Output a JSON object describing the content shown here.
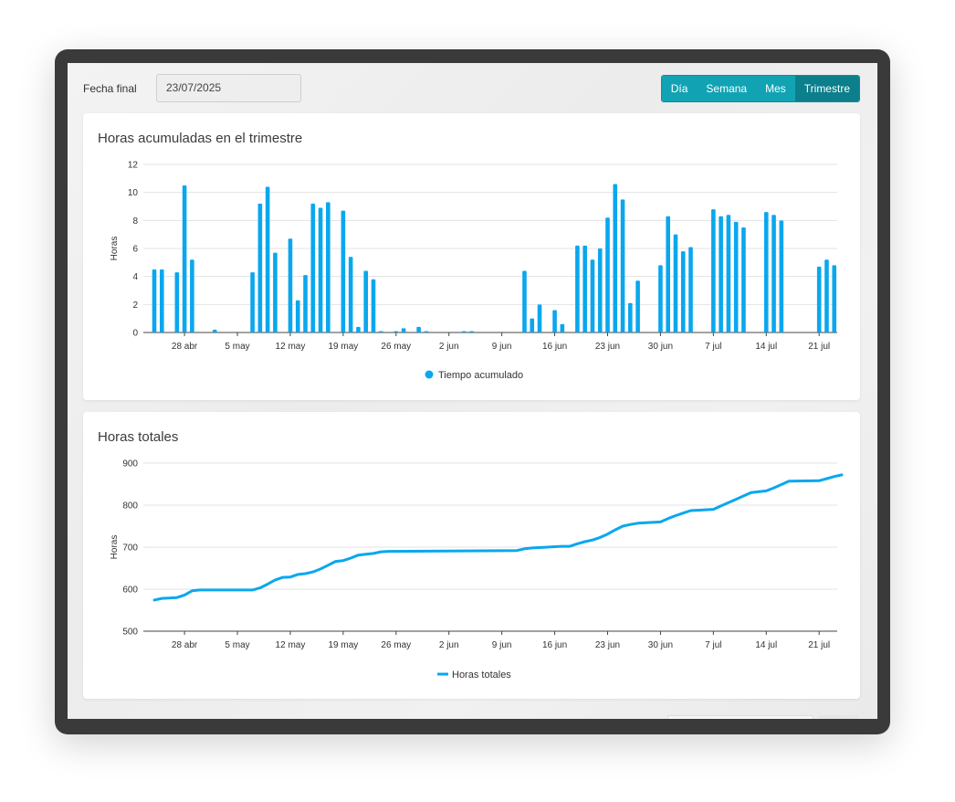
{
  "filter": {
    "label": "Fecha final",
    "value": "23/07/2025"
  },
  "period_tabs": [
    {
      "label": "Día",
      "active": false
    },
    {
      "label": "Semana",
      "active": false
    },
    {
      "label": "Mes",
      "active": false
    },
    {
      "label": "Trimestre",
      "active": true
    }
  ],
  "colors": {
    "series": "#0aa7ee",
    "tab": "#11a3b3",
    "tab_active": "#0b7f8b"
  },
  "chart_data": [
    {
      "type": "bar",
      "title": "Horas acumuladas en el trimestre",
      "ylabel": "Horas",
      "ylim": [
        0,
        12
      ],
      "yticks": [
        0,
        2,
        4,
        6,
        8,
        10,
        12
      ],
      "x_start": "2025-04-24",
      "x_tick_labels": [
        "28 abr",
        "5 may",
        "12 may",
        "19 may",
        "26 may",
        "2 jun",
        "9 jun",
        "16 jun",
        "23 jun",
        "30 jun",
        "7 jul",
        "14 jul",
        "21 jul"
      ],
      "series": [
        {
          "name": "Tiempo acumulado",
          "legend_marker": "circle"
        }
      ],
      "values": [
        4.5,
        4.5,
        0,
        4.3,
        10.5,
        5.2,
        0,
        0,
        0.2,
        0,
        0,
        0,
        0,
        4.3,
        9.2,
        10.4,
        5.7,
        0,
        6.7,
        2.3,
        4.1,
        9.2,
        8.9,
        9.3,
        0,
        8.7,
        5.4,
        0.4,
        4.4,
        3.8,
        0.05,
        0,
        0.1,
        0.3,
        0,
        0.4,
        0.1,
        0,
        0,
        0,
        0,
        0.05,
        0.05,
        0,
        0,
        0,
        0,
        0,
        0,
        4.4,
        1.0,
        2.0,
        0,
        1.6,
        0.6,
        0,
        6.2,
        6.2,
        5.2,
        6.0,
        8.2,
        10.6,
        9.5,
        2.1,
        3.7,
        0,
        0,
        4.8,
        8.3,
        7.0,
        5.8,
        6.1,
        0,
        0,
        8.8,
        8.3,
        8.4,
        7.9,
        7.5,
        0,
        0,
        8.6,
        8.4,
        8.0,
        0,
        0,
        0,
        0,
        4.7,
        5.2,
        4.8
      ]
    },
    {
      "type": "line",
      "title": "Horas totales",
      "ylabel": "Horas",
      "ylim": [
        500,
        900
      ],
      "yticks": [
        500,
        600,
        700,
        800,
        900
      ],
      "x_tick_labels": [
        "28 abr",
        "5 may",
        "12 may",
        "19 may",
        "26 may",
        "2 jun",
        "9 jun",
        "16 jun",
        "23 jun",
        "30 jun",
        "7 jul",
        "14 jul",
        "21 jul"
      ],
      "series": [
        {
          "name": "Horas totales",
          "points": [
            [
              "2025-04-24",
              574
            ],
            [
              "2025-04-25",
              578
            ],
            [
              "2025-04-27",
              580
            ],
            [
              "2025-04-28",
              586
            ],
            [
              "2025-04-29",
              596
            ],
            [
              "2025-04-30",
              598
            ],
            [
              "2025-05-07",
              598
            ],
            [
              "2025-05-08",
              603
            ],
            [
              "2025-05-09",
              612
            ],
            [
              "2025-05-10",
              622
            ],
            [
              "2025-05-11",
              628
            ],
            [
              "2025-05-12",
              629
            ],
            [
              "2025-05-13",
              635
            ],
            [
              "2025-05-14",
              637
            ],
            [
              "2025-05-15",
              641
            ],
            [
              "2025-05-16",
              648
            ],
            [
              "2025-05-17",
              657
            ],
            [
              "2025-05-18",
              666
            ],
            [
              "2025-05-19",
              668
            ],
            [
              "2025-05-20",
              674
            ],
            [
              "2025-05-21",
              681
            ],
            [
              "2025-05-22",
              683
            ],
            [
              "2025-05-23",
              685
            ],
            [
              "2025-05-24",
              689
            ],
            [
              "2025-05-25",
              690
            ],
            [
              "2025-06-11",
              692
            ],
            [
              "2025-06-12",
              696
            ],
            [
              "2025-06-13",
              698
            ],
            [
              "2025-06-15",
              700
            ],
            [
              "2025-06-16",
              701
            ],
            [
              "2025-06-17",
              702
            ],
            [
              "2025-06-18",
              702
            ],
            [
              "2025-06-19",
              708
            ],
            [
              "2025-06-20",
              713
            ],
            [
              "2025-06-21",
              717
            ],
            [
              "2025-06-22",
              723
            ],
            [
              "2025-06-23",
              731
            ],
            [
              "2025-06-24",
              741
            ],
            [
              "2025-06-25",
              750
            ],
            [
              "2025-06-26",
              754
            ],
            [
              "2025-06-27",
              757
            ],
            [
              "2025-06-30",
              760
            ],
            [
              "2025-07-01",
              768
            ],
            [
              "2025-07-02",
              775
            ],
            [
              "2025-07-03",
              781
            ],
            [
              "2025-07-04",
              787
            ],
            [
              "2025-07-07",
              790
            ],
            [
              "2025-07-08",
              798
            ],
            [
              "2025-07-09",
              806
            ],
            [
              "2025-07-10",
              814
            ],
            [
              "2025-07-11",
              822
            ],
            [
              "2025-07-12",
              830
            ],
            [
              "2025-07-14",
              834
            ],
            [
              "2025-07-15",
              841
            ],
            [
              "2025-07-16",
              849
            ],
            [
              "2025-07-17",
              857
            ],
            [
              "2025-07-21",
              858
            ],
            [
              "2025-07-22",
              863
            ],
            [
              "2025-07-23",
              868
            ],
            [
              "2025-07-24",
              872
            ]
          ]
        }
      ]
    }
  ]
}
